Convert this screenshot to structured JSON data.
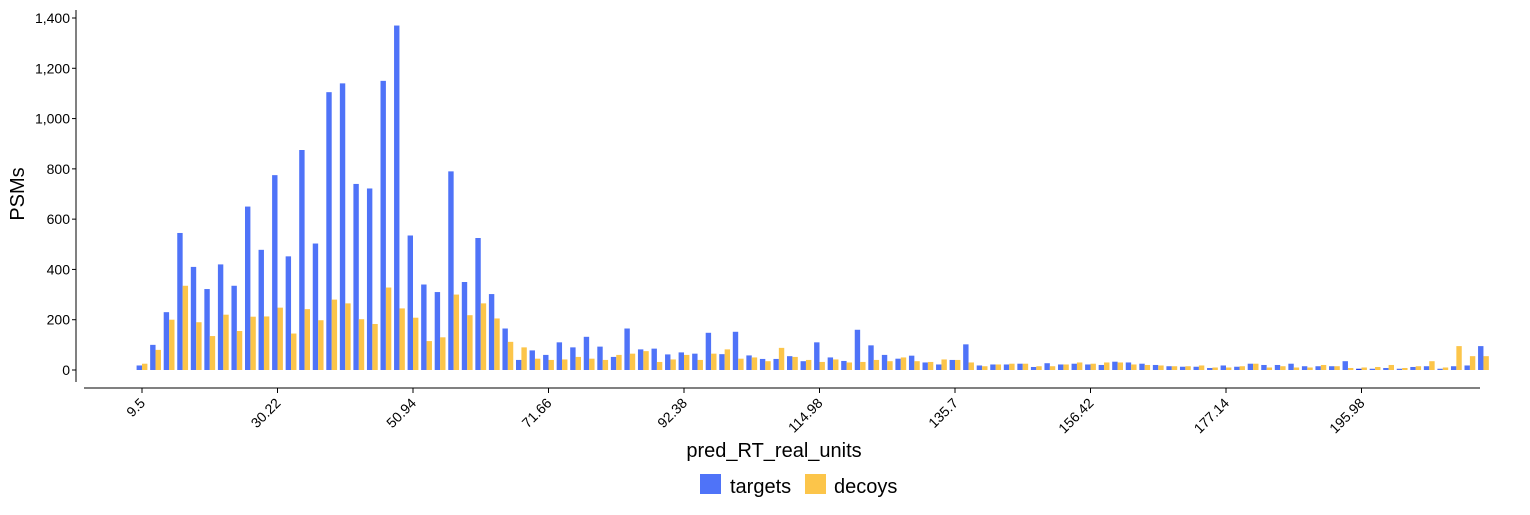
{
  "chart_data": {
    "type": "bar",
    "title": "",
    "xlabel": "pred_RT_real_units",
    "ylabel": "PSMs",
    "ylim": [
      0,
      1400
    ],
    "yticks": [
      0,
      200,
      400,
      600,
      800,
      1000,
      1200,
      1400
    ],
    "ytick_labels": [
      "0",
      "200",
      "400",
      "600",
      "800",
      "1,000",
      "1,200",
      "1,400"
    ],
    "xtick_labels": [
      "9.5",
      "30.22",
      "50.94",
      "71.66",
      "92.38",
      "114.98",
      "135.7",
      "156.42",
      "177.14",
      "195.98"
    ],
    "xtick_bins": [
      0,
      10,
      20,
      30,
      40,
      50,
      60,
      70,
      80,
      90
    ],
    "legend_position": "bottom-center",
    "grid": false,
    "colors": {
      "targets": "#4f73f8",
      "decoys": "#fcc54a",
      "targets_highlight": "#1f3ff0"
    },
    "highlight_bin": 90,
    "series": [
      {
        "name": "targets",
        "values": [
          18,
          100,
          230,
          545,
          410,
          322,
          420,
          335,
          650,
          478,
          775,
          452,
          875,
          503,
          1105,
          1140,
          740,
          722,
          1150,
          1370,
          535,
          340,
          310,
          790,
          350,
          525,
          302,
          165,
          40,
          78,
          60,
          110,
          90,
          132,
          93,
          52,
          165,
          82,
          85,
          62,
          70,
          65,
          148,
          63,
          152,
          58,
          44,
          44,
          55,
          35,
          110,
          50,
          36,
          160,
          98,
          60,
          45,
          57,
          30,
          22,
          40,
          102,
          18,
          22,
          22,
          25,
          12,
          27,
          22,
          25,
          22,
          20,
          33,
          30,
          25,
          20,
          15,
          13,
          13,
          8,
          18,
          13,
          25,
          20,
          20,
          25,
          15,
          15,
          15,
          35,
          5,
          5,
          8,
          5,
          12,
          15,
          5,
          15,
          18,
          95
        ]
      },
      {
        "name": "decoys",
        "values": [
          25,
          80,
          200,
          335,
          190,
          135,
          220,
          155,
          212,
          213,
          248,
          145,
          242,
          198,
          280,
          265,
          202,
          183,
          328,
          245,
          208,
          115,
          130,
          300,
          218,
          265,
          205,
          112,
          90,
          45,
          40,
          42,
          52,
          45,
          40,
          60,
          65,
          75,
          32,
          42,
          60,
          40,
          65,
          82,
          45,
          50,
          35,
          88,
          52,
          40,
          32,
          42,
          30,
          32,
          40,
          35,
          50,
          35,
          32,
          42,
          40,
          30,
          15,
          22,
          25,
          25,
          15,
          15,
          22,
          30,
          25,
          30,
          30,
          22,
          20,
          18,
          15,
          15,
          18,
          10,
          10,
          15,
          25,
          10,
          15,
          10,
          10,
          20,
          15,
          8,
          10,
          12,
          20,
          8,
          15,
          35,
          10,
          95,
          55,
          55
        ]
      }
    ]
  }
}
